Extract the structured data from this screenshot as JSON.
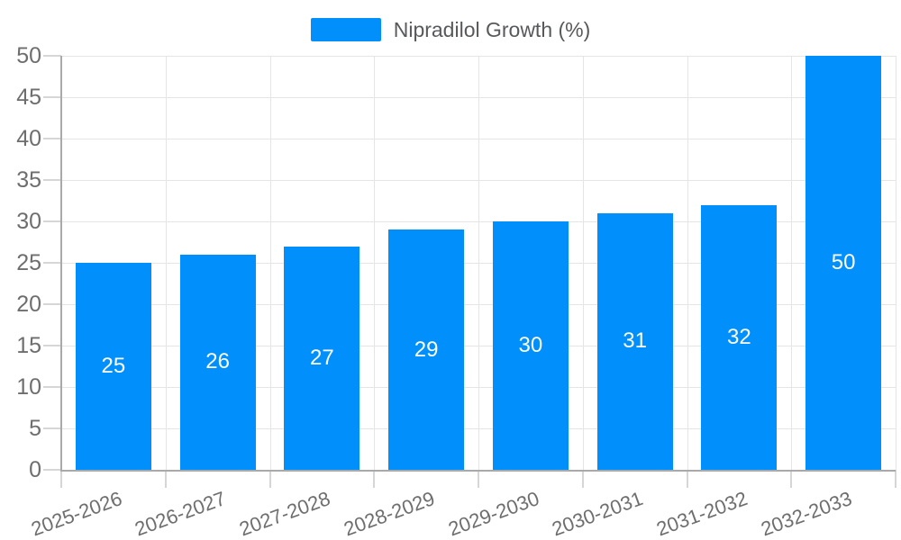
{
  "chart_data": {
    "type": "bar",
    "title": "",
    "legend": {
      "label": "Nipradilol Growth (%)",
      "position": "top"
    },
    "categories": [
      "2025-2026",
      "2026-2027",
      "2027-2028",
      "2028-2029",
      "2029-2030",
      "2030-2031",
      "2031-2032",
      "2032-2033"
    ],
    "series": [
      {
        "name": "Nipradilol Growth (%)",
        "values": [
          25,
          26,
          27,
          29,
          30,
          31,
          32,
          50
        ]
      }
    ],
    "data_labels": true,
    "xlabel": "",
    "ylabel": "",
    "ylim": [
      0,
      50
    ],
    "ytick_step": 5,
    "yticks": [
      0,
      5,
      10,
      15,
      20,
      25,
      30,
      35,
      40,
      45,
      50
    ],
    "grid": true,
    "colors": {
      "bar": "#008FFB",
      "grid_line": "#e5e5e5",
      "axis_line": "#a9a9a9",
      "tick_mark": "#d6d6d6",
      "tick_label": "#6e6e6e",
      "legend_text": "#58595b",
      "bar_label": "#ffffff"
    }
  }
}
